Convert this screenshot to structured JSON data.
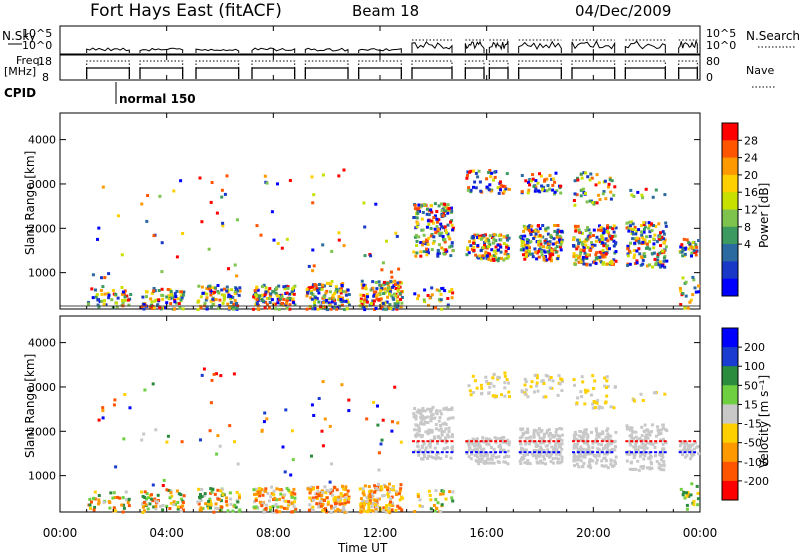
{
  "header": {
    "station": "Fort Hays East (fitACF)",
    "beam": "Beam 18",
    "date": "04/Dec/2009"
  },
  "strips": {
    "nsky_label": "N.Sky",
    "nsky_ticks": [
      "10^5",
      "10^0"
    ],
    "nsearch_label": "N.Search",
    "nsearch_ticks": [
      "10^5",
      "10^0"
    ],
    "freq_label": "Freq.",
    "freq_unit": "[MHz]",
    "freq_ticks": [
      "18",
      "8"
    ],
    "nave_label": "Nave",
    "nave_ticks": [
      "80",
      "0"
    ],
    "cpid_label": "CPID",
    "cpid_value": "normal 150"
  },
  "chart_data": [
    {
      "type": "heatmap",
      "name": "power",
      "ylabel": "Slant Range [km]",
      "xlabel": "Time UT",
      "x_ticks": [
        "00:00",
        "04:00",
        "08:00",
        "12:00",
        "16:00",
        "20:00",
        "00:00"
      ],
      "y_ticks": [
        "1000",
        "2000",
        "3000",
        "4000"
      ],
      "ylim": [
        180,
        4600
      ],
      "xlim_hours": [
        0,
        24
      ],
      "colorbar_label": "Power [dB]",
      "colorbar_ticks": [
        "28",
        "24",
        "20",
        "16",
        "12",
        "8",
        "4"
      ],
      "colorbar_colors": [
        "#ff0000",
        "#ff5500",
        "#ff9900",
        "#ffd000",
        "#c8e000",
        "#7ec34e",
        "#3c9a60",
        "#2a6aa0",
        "#1a38c8",
        "#0000ff"
      ],
      "scatter_groups": [
        {
          "t0": 1.0,
          "t1": 2.6,
          "r0": 200,
          "r1": 700,
          "n": 50,
          "cmin": 0,
          "cmax": 9
        },
        {
          "t0": 1.0,
          "t1": 2.6,
          "r0": 700,
          "r1": 3000,
          "n": 10,
          "cmin": 0,
          "cmax": 9
        },
        {
          "t0": 3.0,
          "t1": 4.6,
          "r0": 200,
          "r1": 700,
          "n": 80,
          "cmin": 0,
          "cmax": 9
        },
        {
          "t0": 3.0,
          "t1": 4.6,
          "r0": 700,
          "r1": 3200,
          "n": 12,
          "cmin": 0,
          "cmax": 9
        },
        {
          "t0": 5.1,
          "t1": 6.7,
          "r0": 200,
          "r1": 750,
          "n": 90,
          "cmin": 0,
          "cmax": 9
        },
        {
          "t0": 5.1,
          "t1": 6.7,
          "r0": 750,
          "r1": 3500,
          "n": 16,
          "cmin": 0,
          "cmax": 9
        },
        {
          "t0": 7.2,
          "t1": 8.8,
          "r0": 200,
          "r1": 750,
          "n": 110,
          "cmin": 0,
          "cmax": 9
        },
        {
          "t0": 7.2,
          "t1": 8.8,
          "r0": 750,
          "r1": 3300,
          "n": 12,
          "cmin": 0,
          "cmax": 9
        },
        {
          "t0": 9.2,
          "t1": 10.8,
          "r0": 200,
          "r1": 800,
          "n": 130,
          "cmin": 0,
          "cmax": 9
        },
        {
          "t0": 9.2,
          "t1": 10.8,
          "r0": 800,
          "r1": 3500,
          "n": 16,
          "cmin": 0,
          "cmax": 9
        },
        {
          "t0": 11.2,
          "t1": 12.8,
          "r0": 200,
          "r1": 850,
          "n": 140,
          "cmin": 0,
          "cmax": 9
        },
        {
          "t0": 11.2,
          "t1": 12.8,
          "r0": 850,
          "r1": 3100,
          "n": 14,
          "cmin": 0,
          "cmax": 9
        },
        {
          "t0": 13.2,
          "t1": 14.7,
          "r0": 1400,
          "r1": 2600,
          "n": 170,
          "cmin": 0,
          "cmax": 9
        },
        {
          "t0": 13.2,
          "t1": 14.7,
          "r0": 200,
          "r1": 700,
          "n": 30,
          "cmin": 0,
          "cmax": 9
        },
        {
          "t0": 15.2,
          "t1": 16.8,
          "r0": 1300,
          "r1": 1900,
          "n": 120,
          "cmin": 0,
          "cmax": 9
        },
        {
          "t0": 15.2,
          "t1": 16.8,
          "r0": 2800,
          "r1": 3350,
          "n": 50,
          "cmin": 0,
          "cmax": 9
        },
        {
          "t0": 17.2,
          "t1": 18.8,
          "r0": 1300,
          "r1": 2100,
          "n": 170,
          "cmin": 0,
          "cmax": 9
        },
        {
          "t0": 17.2,
          "t1": 18.8,
          "r0": 2800,
          "r1": 3300,
          "n": 50,
          "cmin": 0,
          "cmax": 9
        },
        {
          "t0": 19.2,
          "t1": 20.8,
          "r0": 1200,
          "r1": 2100,
          "n": 170,
          "cmin": 0,
          "cmax": 9
        },
        {
          "t0": 19.2,
          "t1": 20.8,
          "r0": 2550,
          "r1": 3300,
          "n": 50,
          "cmin": 0,
          "cmax": 9
        },
        {
          "t0": 21.2,
          "t1": 22.7,
          "r0": 1150,
          "r1": 2200,
          "n": 150,
          "cmin": 0,
          "cmax": 9
        },
        {
          "t0": 21.2,
          "t1": 22.7,
          "r0": 2700,
          "r1": 2950,
          "n": 10,
          "cmin": 0,
          "cmax": 9
        },
        {
          "t0": 23.2,
          "t1": 23.9,
          "r0": 1400,
          "r1": 1800,
          "n": 40,
          "cmin": 0,
          "cmax": 9
        },
        {
          "t0": 23.2,
          "t1": 23.9,
          "r0": 200,
          "r1": 1000,
          "n": 20,
          "cmin": 0,
          "cmax": 9
        }
      ]
    },
    {
      "type": "heatmap",
      "name": "velocity",
      "ylabel": "Slant Range [km]",
      "xlabel": "Time UT",
      "x_ticks": [
        "00:00",
        "04:00",
        "08:00",
        "12:00",
        "16:00",
        "20:00",
        "00:00"
      ],
      "y_ticks": [
        "1000",
        "2000",
        "3000",
        "4000"
      ],
      "ylim": [
        180,
        4600
      ],
      "xlim_hours": [
        0,
        24
      ],
      "colorbar_label": "Velocity [m s⁻¹]",
      "colorbar_ticks": [
        "200",
        "100",
        "50",
        "15",
        "-15",
        "-50",
        "-100",
        "-200"
      ],
      "colorbar_colors": [
        "#0000ff",
        "#1a3cd0",
        "#2a8c3c",
        "#6ed040",
        "#c8c8c8",
        "#ffd000",
        "#ff9900",
        "#ff5500",
        "#ff0000"
      ],
      "scatter_groups": [
        {
          "t0": 1.0,
          "t1": 2.6,
          "r0": 200,
          "r1": 700,
          "n": 40,
          "cmin": 2,
          "cmax": 7
        },
        {
          "t0": 1.0,
          "t1": 2.6,
          "r0": 700,
          "r1": 3000,
          "n": 10,
          "cmin": 0,
          "cmax": 8
        },
        {
          "t0": 3.0,
          "t1": 4.6,
          "r0": 200,
          "r1": 700,
          "n": 60,
          "cmin": 2,
          "cmax": 7
        },
        {
          "t0": 3.0,
          "t1": 4.6,
          "r0": 700,
          "r1": 3200,
          "n": 12,
          "cmin": 0,
          "cmax": 8
        },
        {
          "t0": 5.1,
          "t1": 6.7,
          "r0": 200,
          "r1": 750,
          "n": 70,
          "cmin": 2,
          "cmax": 7
        },
        {
          "t0": 5.1,
          "t1": 6.7,
          "r0": 750,
          "r1": 3500,
          "n": 16,
          "cmin": 0,
          "cmax": 8
        },
        {
          "t0": 7.2,
          "t1": 8.8,
          "r0": 200,
          "r1": 750,
          "n": 100,
          "cmin": 3,
          "cmax": 7
        },
        {
          "t0": 7.2,
          "t1": 8.8,
          "r0": 750,
          "r1": 3300,
          "n": 12,
          "cmin": 0,
          "cmax": 8
        },
        {
          "t0": 9.2,
          "t1": 10.8,
          "r0": 200,
          "r1": 800,
          "n": 120,
          "cmin": 4,
          "cmax": 7
        },
        {
          "t0": 9.2,
          "t1": 10.8,
          "r0": 800,
          "r1": 3500,
          "n": 14,
          "cmin": 0,
          "cmax": 8
        },
        {
          "t0": 11.2,
          "t1": 12.8,
          "r0": 200,
          "r1": 850,
          "n": 140,
          "cmin": 4,
          "cmax": 7
        },
        {
          "t0": 11.2,
          "t1": 12.8,
          "r0": 850,
          "r1": 3100,
          "n": 14,
          "cmin": 0,
          "cmax": 8
        },
        {
          "t0": 13.2,
          "t1": 14.7,
          "r0": 1400,
          "r1": 2600,
          "n": 160,
          "cmin": 4,
          "cmax": 4
        },
        {
          "t0": 13.2,
          "t1": 14.7,
          "r0": 200,
          "r1": 700,
          "n": 30,
          "cmin": 2,
          "cmax": 6
        },
        {
          "t0": 15.2,
          "t1": 16.8,
          "r0": 1300,
          "r1": 1900,
          "n": 120,
          "cmin": 4,
          "cmax": 4
        },
        {
          "t0": 15.2,
          "t1": 16.8,
          "r0": 2800,
          "r1": 3350,
          "n": 40,
          "cmin": 4,
          "cmax": 5
        },
        {
          "t0": 17.2,
          "t1": 18.8,
          "r0": 1300,
          "r1": 2100,
          "n": 170,
          "cmin": 4,
          "cmax": 4
        },
        {
          "t0": 17.2,
          "t1": 18.8,
          "r0": 2800,
          "r1": 3300,
          "n": 40,
          "cmin": 4,
          "cmax": 5
        },
        {
          "t0": 19.2,
          "t1": 20.8,
          "r0": 1200,
          "r1": 2100,
          "n": 170,
          "cmin": 4,
          "cmax": 4
        },
        {
          "t0": 19.2,
          "t1": 20.8,
          "r0": 2550,
          "r1": 3300,
          "n": 40,
          "cmin": 4,
          "cmax": 5
        },
        {
          "t0": 21.2,
          "t1": 22.7,
          "r0": 1150,
          "r1": 2200,
          "n": 150,
          "cmin": 4,
          "cmax": 4
        },
        {
          "t0": 21.2,
          "t1": 22.7,
          "r0": 2700,
          "r1": 2950,
          "n": 10,
          "cmin": 4,
          "cmax": 5
        },
        {
          "t0": 23.2,
          "t1": 23.9,
          "r0": 1400,
          "r1": 1800,
          "n": 40,
          "cmin": 4,
          "cmax": 4
        },
        {
          "t0": 23.2,
          "t1": 23.9,
          "r0": 200,
          "r1": 1000,
          "n": 20,
          "cmin": 2,
          "cmax": 6
        }
      ],
      "lines": [
        {
          "r": 1800,
          "c": 8
        },
        {
          "r": 1550,
          "c": 0
        }
      ]
    }
  ]
}
